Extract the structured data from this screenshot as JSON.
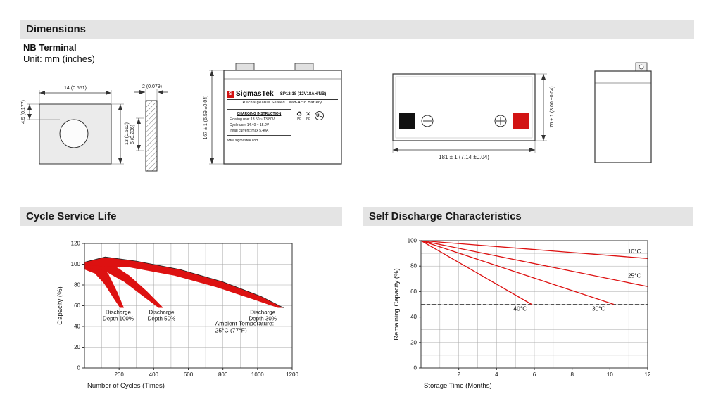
{
  "colors": {
    "accent_red": "#d21414",
    "band_red": "#dd1111",
    "section_bar_bg": "#e4e4e4"
  },
  "sections": {
    "dimensions": "Dimensions",
    "cycle_service_life": "Cycle Service Life",
    "self_discharge": "Self Discharge Characteristics"
  },
  "header": {
    "terminal_type": "NB Terminal",
    "unit_note": "Unit: mm (inches)"
  },
  "drawings": {
    "terminal_front": {
      "width_dim": "14 (0.551)",
      "hole_offset_dim": "4.5 (0.177)",
      "height_dim": "13 (0.512)"
    },
    "terminal_side": {
      "thickness_dim": "2 (0.079)",
      "depth_dim": "6 (0.236)"
    },
    "battery_front": {
      "height_dim": "167 ± 1 (6.59 ±0.04)",
      "label": {
        "logo_letter": "S",
        "brand": "SigmasTek",
        "model": "SP12-18 (12V18AH/NB)",
        "subtitle": "Rechargeable Sealed Lead-Acid Battery",
        "charging_title": "CHARGING INSTRUCTION",
        "charging_lines": [
          "Floating use: 13.50 ~ 13.80V",
          "Cycle use: 14.40 ~ 15.0V",
          "Initial current: max 5.40A"
        ],
        "recycle_symbol": "♻",
        "no_disposal_symbol": "✕",
        "pb": "Pb",
        "ul": "UL",
        "website": "www.sigmastek.com"
      }
    },
    "battery_top": {
      "width_dim": "181 ± 1 (7.14 ±0.04)",
      "height_dim": "76 ± 1 (3.00 ±0.04)"
    }
  },
  "chart_data": [
    {
      "type": "area",
      "title": "Cycle Service Life",
      "xlabel": "Number of Cycles (Times)",
      "ylabel": "Capacity (%)",
      "xlim": [
        0,
        1200
      ],
      "ylim": [
        0,
        120
      ],
      "xticks": [
        200,
        400,
        600,
        800,
        1000,
        1200
      ],
      "yticks": [
        0,
        20,
        40,
        60,
        80,
        100,
        120
      ],
      "grid_x": [
        100,
        200,
        300,
        400,
        500,
        600,
        700,
        800,
        900,
        1000,
        1100,
        1200
      ],
      "grid_y": [
        20,
        40,
        60,
        80,
        100,
        120
      ],
      "grid": true,
      "legend_position": "none",
      "band_color": "#dd1111",
      "annotation": {
        "lines": [
          "Ambient Temperature:",
          "25°C (77°F)"
        ],
        "x": 755,
        "y": 41
      },
      "bands": [
        {
          "name": "discharge-depth-100",
          "label_lines": [
            "Discharge",
            "Depth 100%"
          ],
          "label_x": 195,
          "label_y": 52,
          "top": [
            [
              0,
              100
            ],
            [
              40,
              104
            ],
            [
              90,
              101
            ],
            [
              140,
              90
            ],
            [
              190,
              73
            ],
            [
              228,
              58
            ]
          ],
          "bottom": [
            [
              205,
              58
            ],
            [
              165,
              68
            ],
            [
              115,
              81
            ],
            [
              60,
              91
            ],
            [
              0,
              95
            ]
          ]
        },
        {
          "name": "discharge-depth-50",
          "label_lines": [
            "Discharge",
            "Depth 50%"
          ],
          "label_x": 445,
          "label_y": 52,
          "top": [
            [
              0,
              101
            ],
            [
              70,
              105
            ],
            [
              160,
              100
            ],
            [
              260,
              89
            ],
            [
              360,
              74
            ],
            [
              455,
              58
            ]
          ],
          "bottom": [
            [
              428,
              58
            ],
            [
              340,
              69
            ],
            [
              230,
              83
            ],
            [
              110,
              94
            ],
            [
              0,
              97
            ]
          ]
        },
        {
          "name": "discharge-depth-30",
          "label_lines": [
            "Discharge",
            "Depth 30%"
          ],
          "label_x": 1030,
          "label_y": 52,
          "outline": true,
          "top": [
            [
              0,
              102
            ],
            [
              120,
              107
            ],
            [
              300,
              103
            ],
            [
              550,
              95
            ],
            [
              800,
              83
            ],
            [
              1020,
              69
            ],
            [
              1150,
              58
            ]
          ],
          "bottom": [
            [
              1118,
              58
            ],
            [
              960,
              67
            ],
            [
              760,
              78
            ],
            [
              520,
              89
            ],
            [
              260,
              97
            ],
            [
              0,
              99
            ]
          ]
        }
      ]
    },
    {
      "type": "line",
      "title": "Self Discharge Characteristics",
      "xlabel": "Storage Time (Months)",
      "ylabel": "Remaining Capacity (%)",
      "xlim": [
        0,
        12
      ],
      "ylim": [
        0,
        100
      ],
      "xticks": [
        2,
        4,
        6,
        8,
        10,
        12
      ],
      "yticks": [
        0,
        20,
        40,
        60,
        80,
        100
      ],
      "grid_x": [
        1,
        2,
        3,
        4,
        5,
        6,
        7,
        8,
        9,
        10,
        11,
        12
      ],
      "grid_y": [
        10,
        20,
        30,
        40,
        50,
        60,
        70,
        80,
        90
      ],
      "grid": true,
      "legend_position": "inline-labels",
      "line_color": "#dd1111",
      "dashed_line_y": 50,
      "series": [
        {
          "name": "10C",
          "label": "10°C",
          "points": [
            [
              0,
              100
            ],
            [
              12,
              86
            ]
          ],
          "label_x": 11.3,
          "label_y": 90
        },
        {
          "name": "25C",
          "label": "25°C",
          "points": [
            [
              0,
              100
            ],
            [
              12,
              64
            ]
          ],
          "label_x": 11.3,
          "label_y": 71
        },
        {
          "name": "30C",
          "label": "30°C",
          "points": [
            [
              0,
              100
            ],
            [
              10.2,
              50
            ]
          ],
          "label_x": 9.4,
          "label_y": 45
        },
        {
          "name": "40C",
          "label": "40°C",
          "points": [
            [
              0,
              100
            ],
            [
              5.85,
              50
            ]
          ],
          "label_x": 5.25,
          "label_y": 45
        }
      ]
    }
  ]
}
